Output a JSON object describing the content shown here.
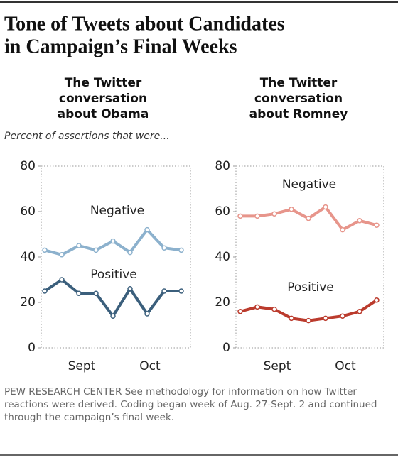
{
  "title_lines": [
    "Tone of Tweets about Candidates",
    "in Campaign’s Final Weeks"
  ],
  "axis_note": "Percent of assertions that were...",
  "footer": "PEW RESEARCH CENTER See methodology for information on how Twitter reactions were derived. Coding began week of Aug. 27-Sept. 2 and continued through the campaign’s final week.",
  "chart_data": [
    {
      "type": "line",
      "subtitle_lines": [
        "The Twitter",
        "conversation",
        "about Obama"
      ],
      "categories": [
        null,
        null,
        "Sept",
        null,
        null,
        null,
        "Oct",
        null,
        null
      ],
      "ylim": [
        0,
        80
      ],
      "yticks": [
        0,
        20,
        40,
        60,
        80
      ],
      "grid": false,
      "series": [
        {
          "name": "Negative",
          "color": "#8cb1cd",
          "values": [
            43,
            41,
            45,
            43,
            47,
            42,
            52,
            44,
            43
          ]
        },
        {
          "name": "Positive",
          "color": "#3b5f7c",
          "values": [
            25,
            30,
            24,
            24,
            14,
            26,
            15,
            25,
            25
          ]
        }
      ]
    },
    {
      "type": "line",
      "subtitle_lines": [
        "The Twitter",
        "conversation",
        "about Romney"
      ],
      "categories": [
        null,
        null,
        "Sept",
        null,
        null,
        null,
        "Oct",
        null,
        null
      ],
      "ylim": [
        0,
        80
      ],
      "yticks": [
        0,
        20,
        40,
        60,
        80
      ],
      "grid": false,
      "series": [
        {
          "name": "Negative",
          "color": "#e7958b",
          "values": [
            58,
            58,
            59,
            61,
            57,
            62,
            52,
            56,
            54
          ]
        },
        {
          "name": "Positive",
          "color": "#bb3b2d",
          "values": [
            16,
            18,
            17,
            13,
            12,
            13,
            14,
            16,
            21
          ]
        }
      ]
    }
  ]
}
